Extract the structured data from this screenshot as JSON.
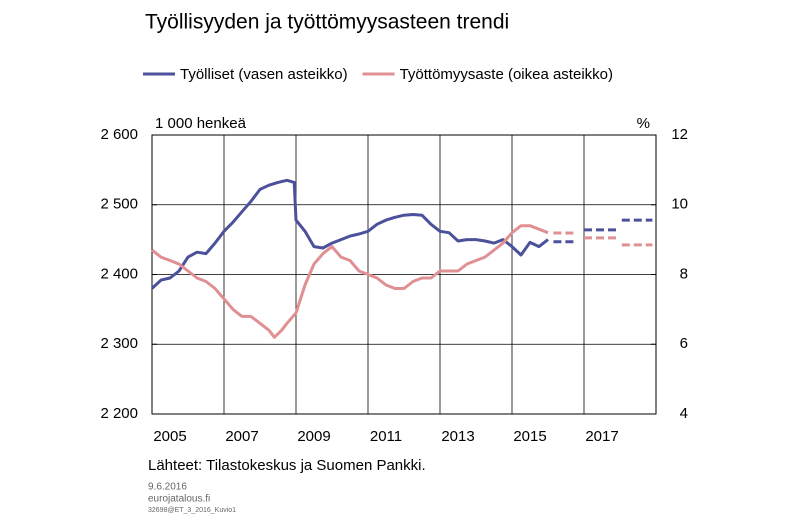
{
  "chart_data": {
    "type": "line",
    "title": "Työllisyyden ja työttömyysasteen trendi",
    "y_label": "1 000 henkeä",
    "y2_label": "%",
    "source": "Lähteet:  Tilastokeskus ja Suomen Pankki.",
    "footer": [
      "9.6.2016",
      "eurojatalous.fi",
      "32698@ET_3_2016_Kuvio1"
    ],
    "xlim": [
      2005,
      2019
    ],
    "xticks": [
      {
        "value": 2005.5,
        "label": "2005"
      },
      {
        "value": 2007.5,
        "label": "2007"
      },
      {
        "value": 2009.5,
        "label": "2009"
      },
      {
        "value": 2011.5,
        "label": "2011"
      },
      {
        "value": 2013.5,
        "label": "2013"
      },
      {
        "value": 2015.5,
        "label": "2015"
      },
      {
        "value": 2017.5,
        "label": "2017"
      }
    ],
    "x_grid": [
      2007,
      2009,
      2011,
      2013,
      2015,
      2017
    ],
    "ylim": [
      2200,
      2600
    ],
    "yticks": [
      {
        "value": 2200,
        "label": "2 200"
      },
      {
        "value": 2300,
        "label": "2 300"
      },
      {
        "value": 2400,
        "label": "2 400"
      },
      {
        "value": 2500,
        "label": "2 500"
      },
      {
        "value": 2600,
        "label": "2 600"
      }
    ],
    "y2lim": [
      4,
      12
    ],
    "y2ticks": [
      4,
      6,
      8,
      10,
      12
    ],
    "grid": true,
    "series": [
      {
        "name": "Työlliset (vasen asteikko)",
        "color": "#4b519a",
        "axis": "y",
        "x": [
          2005,
          2005.25,
          2005.5,
          2005.75,
          2006,
          2006.25,
          2006.5,
          2006.75,
          2007,
          2007.25,
          2007.5,
          2007.75,
          2008,
          2008.25,
          2008.5,
          2008.75,
          2008.95,
          2009,
          2009.25,
          2009.5,
          2009.75,
          2010,
          2010.25,
          2010.5,
          2010.75,
          2011,
          2011.25,
          2011.5,
          2011.75,
          2012,
          2012.25,
          2012.5,
          2012.75,
          2013,
          2013.25,
          2013.5,
          2013.75,
          2014,
          2014.25,
          2014.5,
          2014.75,
          2015,
          2015.25,
          2015.5,
          2015.75,
          2016
        ],
        "values": [
          2380,
          2392,
          2395,
          2405,
          2425,
          2432,
          2430,
          2445,
          2462,
          2475,
          2490,
          2505,
          2522,
          2528,
          2532,
          2535,
          2532,
          2478,
          2462,
          2440,
          2438,
          2445,
          2450,
          2455,
          2458,
          2462,
          2472,
          2478,
          2482,
          2485,
          2486,
          2485,
          2472,
          2462,
          2460,
          2448,
          2450,
          2450,
          2448,
          2445,
          2450,
          2440,
          2428,
          2446,
          2440,
          2450
        ]
      },
      {
        "name": "Työttömyysaste (oikea asteikko)",
        "color": "#e09092",
        "axis": "y2",
        "x": [
          2005,
          2005.25,
          2005.5,
          2005.75,
          2006,
          2006.25,
          2006.5,
          2006.75,
          2007,
          2007.25,
          2007.5,
          2007.75,
          2008,
          2008.25,
          2008.4,
          2008.6,
          2008.75,
          2009,
          2009.25,
          2009.5,
          2009.75,
          2010,
          2010.25,
          2010.5,
          2010.75,
          2011,
          2011.25,
          2011.5,
          2011.75,
          2012,
          2012.25,
          2012.5,
          2012.75,
          2013,
          2013.25,
          2013.5,
          2013.75,
          2014,
          2014.25,
          2014.5,
          2014.75,
          2015,
          2015.25,
          2015.5,
          2015.75,
          2016
        ],
        "values": [
          8.7,
          8.5,
          8.4,
          8.3,
          8.1,
          7.9,
          7.8,
          7.6,
          7.3,
          7.0,
          6.8,
          6.8,
          6.6,
          6.4,
          6.2,
          6.4,
          6.6,
          6.9,
          7.7,
          8.3,
          8.6,
          8.8,
          8.5,
          8.4,
          8.1,
          8.0,
          7.9,
          7.7,
          7.6,
          7.6,
          7.8,
          7.9,
          7.9,
          8.1,
          8.1,
          8.1,
          8.3,
          8.4,
          8.5,
          8.7,
          8.9,
          9.2,
          9.4,
          9.4,
          9.3,
          9.2
        ]
      },
      {
        "color": "#4b519a",
        "axis": "y",
        "dashed": true,
        "x": [
          2016.15,
          2016.8,
          2016.9,
          2017,
          2017.9,
          2018,
          2018.05,
          2018.9
        ],
        "values": [
          2447,
          2447,
          null,
          2464,
          2464,
          null,
          2478,
          2478
        ]
      },
      {
        "color": "#e09092",
        "axis": "y2",
        "dashed": true,
        "x": [
          2016.15,
          2016.8,
          2016.9,
          2017,
          2017.9,
          2018,
          2018.05,
          2018.9
        ],
        "values": [
          9.19,
          9.19,
          null,
          9.05,
          9.05,
          null,
          8.85,
          8.85
        ]
      }
    ]
  }
}
